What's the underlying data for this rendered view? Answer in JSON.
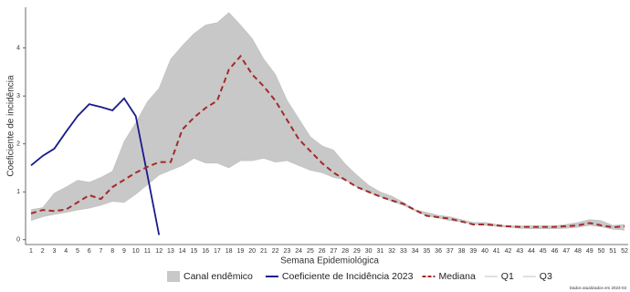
{
  "chart_data": {
    "type": "line",
    "x_label": "Semana Epidemiológica",
    "y_label": "Coeficiente de incidência",
    "footnote": "Dados atualizados em 2023-03",
    "band_name": "Canal endêmico",
    "band_color": "#c8c8c8",
    "categories": [
      1,
      2,
      3,
      4,
      5,
      6,
      7,
      8,
      9,
      10,
      11,
      12,
      13,
      14,
      15,
      16,
      17,
      18,
      19,
      20,
      21,
      22,
      23,
      24,
      25,
      26,
      27,
      28,
      29,
      30,
      31,
      32,
      33,
      34,
      35,
      36,
      37,
      38,
      39,
      40,
      41,
      42,
      43,
      44,
      45,
      46,
      47,
      48,
      49,
      50,
      51,
      52
    ],
    "ylim": [
      -0.1,
      4.85
    ],
    "yticks": [
      0,
      1,
      2,
      3,
      4
    ],
    "series": [
      {
        "name": "Q1",
        "color": "#c0c0c0",
        "values": [
          0.4,
          0.48,
          0.53,
          0.57,
          0.62,
          0.66,
          0.72,
          0.8,
          0.78,
          0.95,
          1.15,
          1.35,
          1.45,
          1.55,
          1.7,
          1.6,
          1.6,
          1.5,
          1.65,
          1.65,
          1.7,
          1.62,
          1.65,
          1.55,
          1.45,
          1.4,
          1.3,
          1.25,
          1.1,
          0.98,
          0.9,
          0.8,
          0.72,
          0.6,
          0.5,
          0.45,
          0.4,
          0.37,
          0.32,
          0.3,
          0.28,
          0.26,
          0.24,
          0.23,
          0.23,
          0.23,
          0.24,
          0.26,
          0.3,
          0.27,
          0.22,
          0.2
        ]
      },
      {
        "name": "Q3",
        "color": "#c0c0c0",
        "values": [
          0.63,
          0.67,
          0.97,
          1.1,
          1.24,
          1.2,
          1.3,
          1.43,
          2.05,
          2.44,
          2.88,
          3.16,
          3.77,
          4.05,
          4.3,
          4.48,
          4.53,
          4.74,
          4.48,
          4.2,
          3.77,
          3.45,
          2.91,
          2.53,
          2.15,
          1.96,
          1.87,
          1.58,
          1.35,
          1.14,
          1.0,
          0.91,
          0.78,
          0.63,
          0.57,
          0.51,
          0.48,
          0.42,
          0.36,
          0.36,
          0.32,
          0.29,
          0.29,
          0.29,
          0.29,
          0.29,
          0.32,
          0.36,
          0.42,
          0.4,
          0.3,
          0.32
        ]
      },
      {
        "name": "Coeficiente de Incidência 2023",
        "color": "#1a1a8c",
        "values": [
          1.55,
          1.75,
          1.9,
          2.25,
          2.58,
          2.83,
          2.77,
          2.7,
          2.95,
          2.58,
          1.35,
          0.1,
          null,
          null,
          null,
          null,
          null,
          null,
          null,
          null,
          null,
          null,
          null,
          null,
          null,
          null,
          null,
          null,
          null,
          null,
          null,
          null,
          null,
          null,
          null,
          null,
          null,
          null,
          null,
          null,
          null,
          null,
          null,
          null,
          null,
          null,
          null,
          null,
          null,
          null,
          null,
          null
        ]
      },
      {
        "name": "Mediana",
        "color": "#a52a2a",
        "dashed": true,
        "values": [
          0.55,
          0.62,
          0.6,
          0.63,
          0.78,
          0.93,
          0.85,
          1.1,
          1.25,
          1.4,
          1.52,
          1.62,
          1.62,
          2.3,
          2.55,
          2.75,
          2.9,
          3.55,
          3.83,
          3.45,
          3.2,
          2.9,
          2.5,
          2.1,
          1.85,
          1.6,
          1.4,
          1.25,
          1.1,
          1.0,
          0.9,
          0.82,
          0.75,
          0.62,
          0.5,
          0.47,
          0.44,
          0.38,
          0.32,
          0.32,
          0.3,
          0.28,
          0.27,
          0.27,
          0.27,
          0.27,
          0.28,
          0.3,
          0.35,
          0.3,
          0.26,
          0.28
        ]
      }
    ]
  }
}
